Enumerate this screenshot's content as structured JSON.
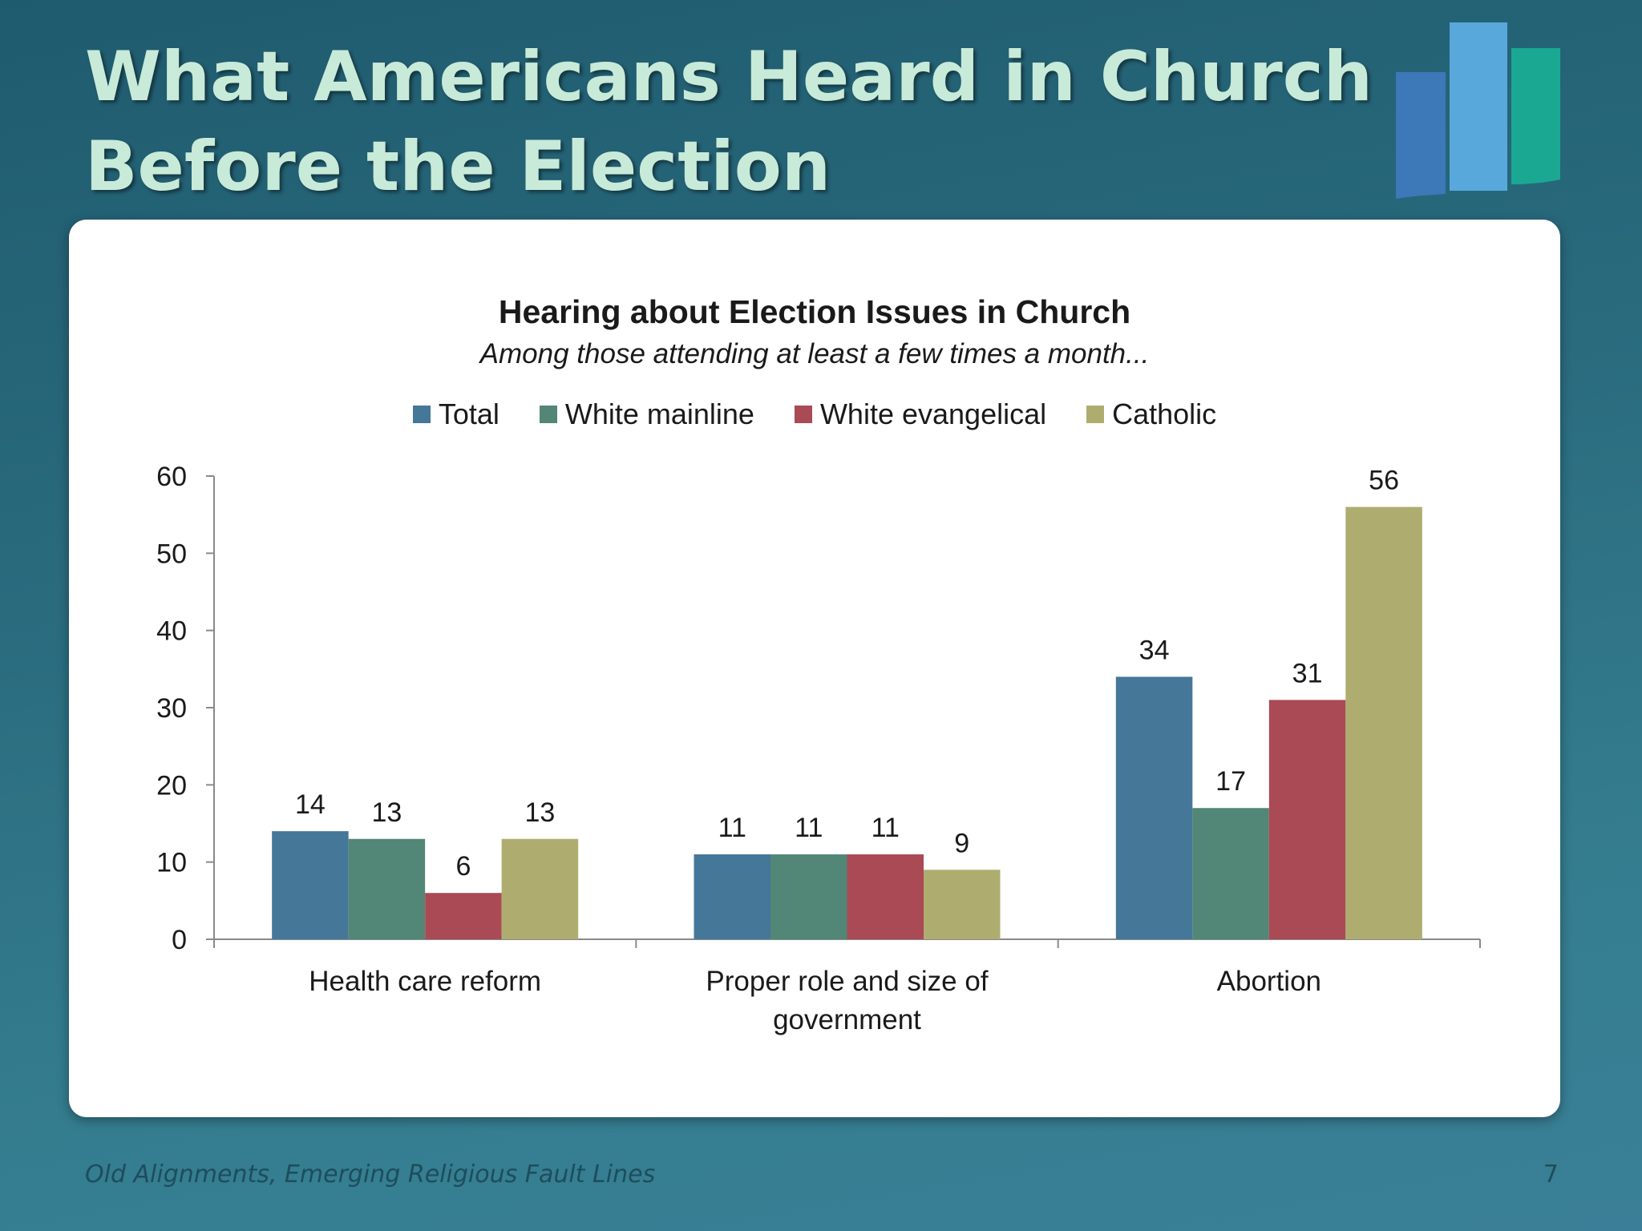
{
  "slide": {
    "title_line1": "What Americans Heard in Church",
    "title_line2": "Before the Election",
    "footer": "Old Alignments, Emerging Religious Fault Lines",
    "page_number": "7"
  },
  "colors": {
    "title_text": "#c8ead8",
    "background": "#2a6b7e",
    "logo_bars": [
      "#3d78b8",
      "#58a8dc",
      "#1aa893"
    ]
  },
  "chart_data": {
    "type": "bar",
    "title": "Hearing about Election Issues in Church",
    "subtitle": "Among those attending at least a few times a month...",
    "categories": [
      "Health care reform",
      "Proper role and size of government",
      "Abortion"
    ],
    "series": [
      {
        "name": "Total",
        "color": "#457799",
        "values": [
          14,
          11,
          34
        ]
      },
      {
        "name": "White mainline",
        "color": "#528676",
        "values": [
          13,
          11,
          17
        ]
      },
      {
        "name": "White evangelical",
        "color": "#a94a55",
        "values": [
          6,
          11,
          31
        ]
      },
      {
        "name": "Catholic",
        "color": "#aead6f",
        "values": [
          13,
          9,
          56
        ]
      }
    ],
    "ylim": [
      0,
      60
    ],
    "yticks": [
      0,
      10,
      20,
      30,
      40,
      50,
      60
    ],
    "xlabel": "",
    "ylabel": "",
    "legend_position": "top",
    "grid": false,
    "data_labels": true
  }
}
